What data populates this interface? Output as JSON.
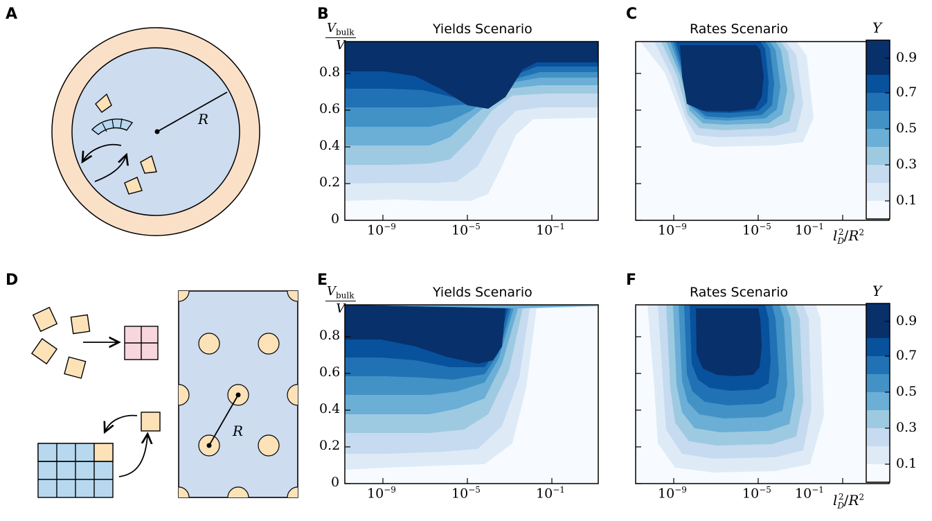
{
  "panel_labels": {
    "A": "A",
    "B": "B",
    "C": "C",
    "D": "D",
    "E": "E",
    "F": "F"
  },
  "titles": {
    "B": "Yields Scenario",
    "C": "Rates Scenario",
    "E": "Yields Scenario",
    "F": "Rates Scenario"
  },
  "schematic": {
    "radius_label_A": "R",
    "radius_label_D": "R"
  },
  "axes": {
    "ylabel_num": "V_bulk",
    "ylabel_den": "V",
    "xlabel": "l_D^2/R^2",
    "yticks": [
      "0",
      "0.2",
      "0.4",
      "0.6",
      "0.8"
    ],
    "xticks": [
      "10^-9",
      "10^-5",
      "10^-1"
    ]
  },
  "colorbar": {
    "label": "Y",
    "ticks": [
      "0.9",
      "0.7",
      "0.5",
      "0.3",
      "0.1"
    ],
    "levels": [
      "#f7fbff",
      "#deebf7",
      "#c6dbef",
      "#9ecae1",
      "#6baed6",
      "#4292c6",
      "#2171b5",
      "#08519c",
      "#08306b"
    ]
  },
  "colors": {
    "shell": "#fbe0c8",
    "interior": "#cddcef",
    "particle": "#fde2b8",
    "grid_pink": "#f8d6de",
    "grid_blue": "#b7d8ee"
  },
  "chart_data": [
    {
      "panel": "B",
      "type": "heatmap",
      "title": "Yields Scenario",
      "xlabel": "",
      "ylabel": "V_bulk/V",
      "x_scale": "log",
      "xlim": [
        "1e-11",
        "1e1"
      ],
      "ylim": [
        0,
        0.97
      ],
      "z_label": "Y",
      "z_levels": [
        0.1,
        0.2,
        0.3,
        0.4,
        0.5,
        0.6,
        0.7,
        0.8,
        0.9
      ]
    },
    {
      "panel": "C",
      "type": "heatmap",
      "title": "Rates Scenario",
      "xlabel": "l_D^2/R^2",
      "ylabel": "",
      "x_scale": "log",
      "xlim": [
        "1e-11",
        "1e1"
      ],
      "ylim": [
        0,
        0.97
      ],
      "z_label": "Y",
      "z_levels": [
        0.1,
        0.2,
        0.3,
        0.4,
        0.5,
        0.6,
        0.7,
        0.8,
        0.9
      ]
    },
    {
      "panel": "E",
      "type": "heatmap",
      "title": "Yields Scenario",
      "xlabel": "",
      "ylabel": "V_bulk/V",
      "x_scale": "log",
      "xlim": [
        "1e-11",
        "1e1"
      ],
      "ylim": [
        0,
        0.97
      ],
      "z_label": "Y",
      "z_levels": [
        0.1,
        0.2,
        0.3,
        0.4,
        0.5,
        0.6,
        0.7,
        0.8,
        0.9
      ]
    },
    {
      "panel": "F",
      "type": "heatmap",
      "title": "Rates Scenario",
      "xlabel": "l_D^2/R^2",
      "ylabel": "",
      "x_scale": "log",
      "xlim": [
        "1e-11",
        "1e1"
      ],
      "ylim": [
        0,
        0.97
      ],
      "z_label": "Y",
      "z_levels": [
        0.1,
        0.2,
        0.3,
        0.4,
        0.5,
        0.6,
        0.7,
        0.8,
        0.9
      ]
    }
  ]
}
